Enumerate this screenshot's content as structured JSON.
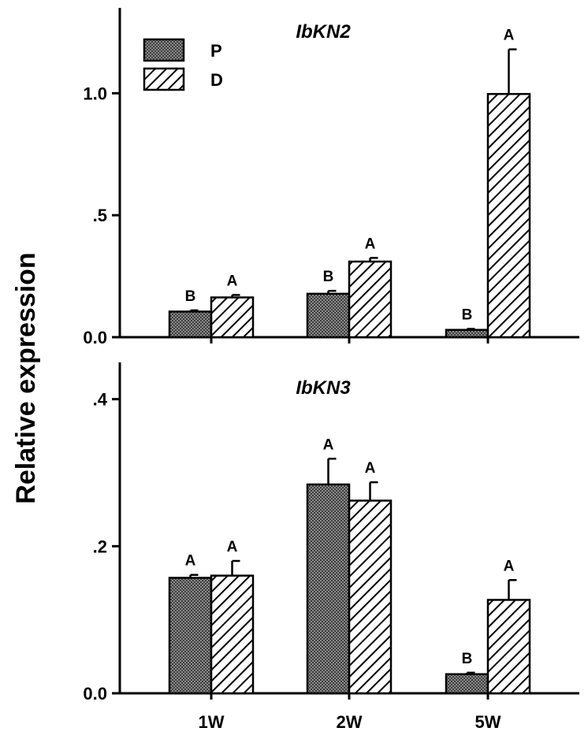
{
  "ylabel": "Relative expression",
  "colors": {
    "P_fill": "#6e6e6e",
    "D_fill": "#ffffff",
    "stroke": "#000000"
  },
  "chart_data": [
    {
      "type": "bar",
      "title": "IbKN2",
      "categories": [
        "1W",
        "2W",
        "5W"
      ],
      "ylim": [
        0,
        1.35
      ],
      "yticks": [
        {
          "value": 0.0,
          "label": "0.0"
        },
        {
          "value": 0.5,
          "label": ".5"
        },
        {
          "value": 1.0,
          "label": "1.0"
        }
      ],
      "legend": {
        "position": "top-left",
        "entries": [
          "P",
          "D"
        ]
      },
      "series": [
        {
          "name": "P",
          "values": [
            0.105,
            0.178,
            0.03
          ],
          "errors": [
            0.005,
            0.012,
            0.004
          ],
          "sig": [
            "B",
            "B",
            "B"
          ]
        },
        {
          "name": "D",
          "values": [
            0.163,
            0.31,
            0.997
          ],
          "errors": [
            0.01,
            0.015,
            0.183
          ],
          "sig": [
            "A",
            "A",
            "A"
          ]
        }
      ]
    },
    {
      "type": "bar",
      "title": "IbKN3",
      "categories": [
        "1W",
        "2W",
        "5W"
      ],
      "ylim": [
        0,
        0.45
      ],
      "yticks": [
        {
          "value": 0.0,
          "label": "0.0"
        },
        {
          "value": 0.2,
          "label": ".2"
        },
        {
          "value": 0.4,
          "label": ".4"
        }
      ],
      "series": [
        {
          "name": "P",
          "values": [
            0.157,
            0.284,
            0.026
          ],
          "errors": [
            0.004,
            0.035,
            0.002
          ],
          "sig": [
            "A",
            "A",
            "B"
          ]
        },
        {
          "name": "D",
          "values": [
            0.16,
            0.262,
            0.127
          ],
          "errors": [
            0.02,
            0.025,
            0.027
          ],
          "sig": [
            "A",
            "A",
            "A"
          ]
        }
      ]
    }
  ]
}
